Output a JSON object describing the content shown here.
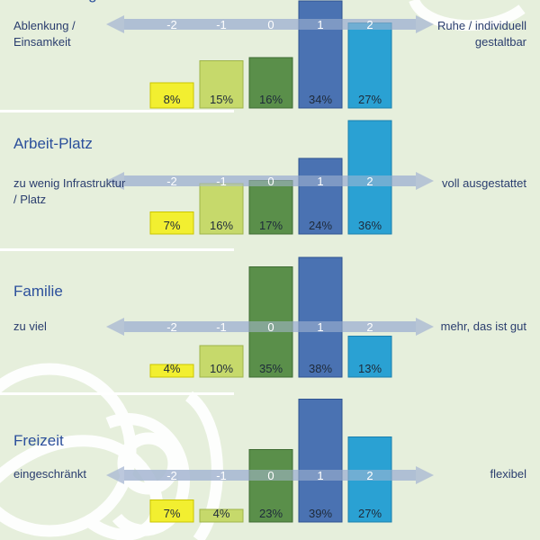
{
  "colors": {
    "background": "#e6efdc",
    "bar_fills": [
      "#f2ef30",
      "#c6d96b",
      "#5a8f4a",
      "#4a72b2",
      "#2aa1d3"
    ],
    "bar_strokes": [
      "#c9c400",
      "#9fb44a",
      "#3f6b33",
      "#2e5391",
      "#1a7fad"
    ],
    "axis_arrow": "#a9b9d3",
    "axis_text": "#ffffff",
    "title": "#2b4f9b",
    "label": "#2a3d6e"
  },
  "chart_data": [
    {
      "type": "bar",
      "title": "Arbeit-Alltag",
      "left_label": "Ablenkung / Einsamkeit",
      "right_label": "Ruhe / individuell gestaltbar",
      "categories": [
        "-2",
        "-1",
        "0",
        "1",
        "2"
      ],
      "values": [
        8,
        15,
        16,
        34,
        27
      ],
      "value_labels": [
        "8%",
        "15%",
        "16%",
        "34%",
        "27%"
      ],
      "ylim": [
        0,
        40
      ]
    },
    {
      "type": "bar",
      "title": "Arbeit-Platz",
      "left_label": "zu wenig Infrastruktur / Platz",
      "right_label": "voll ausgestattet",
      "categories": [
        "-2",
        "-1",
        "0",
        "1",
        "2"
      ],
      "values": [
        7,
        16,
        17,
        24,
        36
      ],
      "value_labels": [
        "7%",
        "16%",
        "17%",
        "24%",
        "36%"
      ],
      "ylim": [
        0,
        40
      ]
    },
    {
      "type": "bar",
      "title": "Familie",
      "left_label": "zu viel",
      "right_label": "mehr, das ist gut",
      "categories": [
        "-2",
        "-1",
        "0",
        "1",
        "2"
      ],
      "values": [
        4,
        10,
        35,
        38,
        13
      ],
      "value_labels": [
        "4%",
        "10%",
        "35%",
        "38%",
        "13%"
      ],
      "ylim": [
        0,
        40
      ]
    },
    {
      "type": "bar",
      "title": "Freizeit",
      "left_label": "eingeschränkt",
      "right_label": "flexibel",
      "categories": [
        "-2",
        "-1",
        "0",
        "1",
        "2"
      ],
      "values": [
        7,
        4,
        23,
        39,
        27
      ],
      "value_labels": [
        "7%",
        "4%",
        "23%",
        "39%",
        "27%"
      ],
      "ylim": [
        0,
        40
      ]
    }
  ]
}
